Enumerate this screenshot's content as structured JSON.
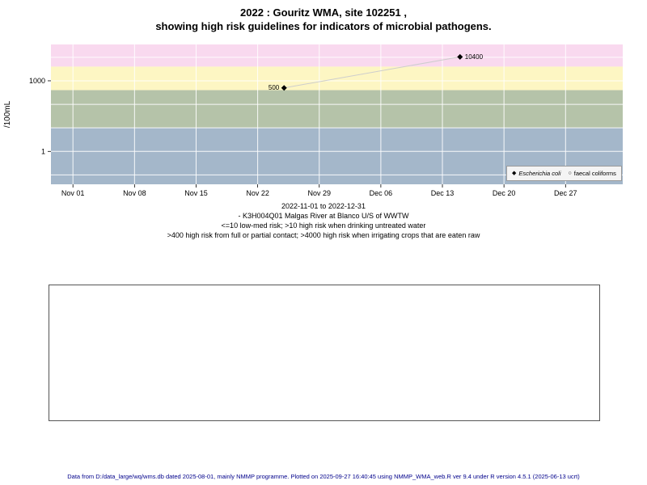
{
  "title": {
    "line1": "2022 : Gouritz WMA, site 102251 ,",
    "line2": "showing high risk guidelines for indicators of microbial pathogens."
  },
  "chart_data": {
    "type": "scatter",
    "title": "2022 : Gouritz WMA, site 102251 , showing high risk guidelines for indicators of microbial pathogens.",
    "ylabel": "/100mL",
    "y_scale": "log",
    "ylim": [
      0.04,
      35000
    ],
    "y_ticks": [
      {
        "value": 1000,
        "label": "1000"
      },
      {
        "value": 1,
        "label": "1"
      }
    ],
    "x_axis": {
      "range_days": [
        -2.5,
        62.5
      ],
      "ticks": [
        {
          "day": 0,
          "label": "Nov 01"
        },
        {
          "day": 7,
          "label": "Nov 08"
        },
        {
          "day": 14,
          "label": "Nov 15"
        },
        {
          "day": 21,
          "label": "Nov 22"
        },
        {
          "day": 28,
          "label": "Nov 29"
        },
        {
          "day": 35,
          "label": "Dec 06"
        },
        {
          "day": 42,
          "label": "Dec 13"
        },
        {
          "day": 49,
          "label": "Dec 20"
        },
        {
          "day": 56,
          "label": "Dec 27"
        }
      ]
    },
    "bands": [
      {
        "name": "above-4000-irrigation-high-risk",
        "from": 4000,
        "to": 35000,
        "color": "#f9d9ef"
      },
      {
        "name": "400-to-4000-contact-high-risk",
        "from": 400,
        "to": 4000,
        "color": "#fdf6c3"
      },
      {
        "name": "10-to-400-drinking-high-risk",
        "from": 10,
        "to": 400,
        "color": "#b5c3a9"
      },
      {
        "name": "below-10-low-med-risk",
        "from": 0.04,
        "to": 10,
        "color": "#a4b7ca"
      }
    ],
    "horizontal_gridline_values": [
      0.1,
      1,
      10,
      100,
      1000,
      10000
    ],
    "series": [
      {
        "name": "Escherichia coli",
        "marker": "filled-diamond",
        "line_color": "#cdcdcd",
        "points": [
          {
            "day": 24,
            "value": 500,
            "label": "500",
            "label_side": "left"
          },
          {
            "day": 44,
            "value": 10400,
            "label": "10400",
            "label_side": "right"
          }
        ]
      },
      {
        "name": "faecal coliforms",
        "marker": "open-circle",
        "line_color": "#cdcdcd",
        "points": []
      }
    ],
    "legend": [
      {
        "marker": "filled-diamond",
        "label": "Escherichia coli"
      },
      {
        "marker": "open-circle",
        "label": "faecal coliforms"
      }
    ]
  },
  "icons": {
    "filled_diamond": "◆",
    "open_circle": "○"
  },
  "caption": {
    "line1": "2022-11-01 to 2022-12-31",
    "line2": "- K3H004Q01 Malgas River at Blanco U/S of WWTW",
    "line3": "<=10 low-med risk; >10 high risk when drinking untreated water",
    "line4": ">400 high risk from full or partial contact; >4000 high risk when irrigating crops that are eaten raw"
  },
  "footer": "Data from D:/data_large/wq/wms.db dated 2025-08-01, mainly NMMP programme. Plotted on 2025-09-27 16:40:45 using NMMP_WMA_web.R ver 9.4 under R version 4.5.1 (2025-06-13 ucrt)"
}
